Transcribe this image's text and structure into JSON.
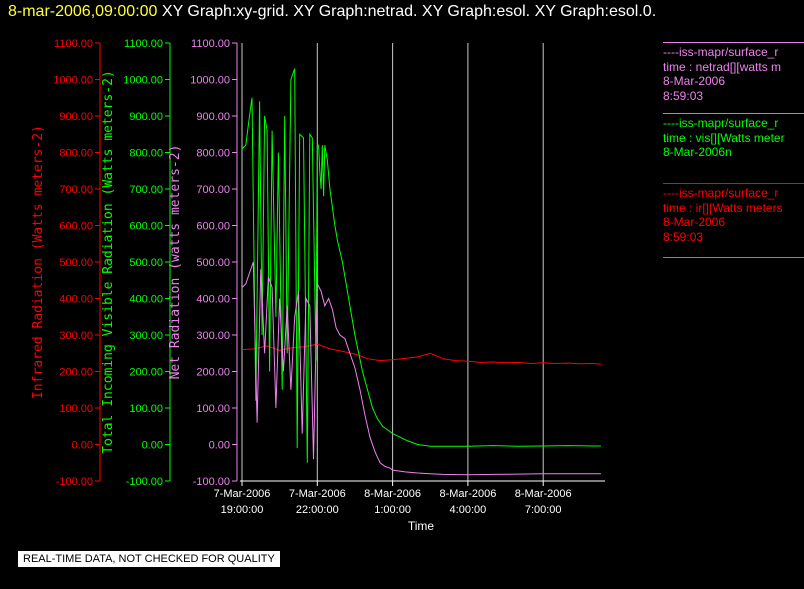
{
  "header": {
    "timestamp": "8-mar-2006,09:00:00",
    "graphs": [
      "XY Graph:xy-grid.",
      "XY Graph:netrad.",
      "XY Graph:esol.",
      "XY Graph:esol.0."
    ]
  },
  "legends": [
    {
      "color": "#ee82ee",
      "lines": [
        "----iss-mapr/surface_r",
        "time : netrad[][watts m",
        "8-Mar-2006",
        "8:59:03"
      ]
    },
    {
      "color": "#00ff00",
      "lines": [
        "----iss-mapr/surface_r",
        "time : vis[][Watts meter",
        "8-Mar-2006n"
      ]
    },
    {
      "color": "#ff0000",
      "lines": [
        "----iss-mapr/surface_r",
        "time : ir[][Watts meters",
        "8-Mar-2006",
        "8:59:03"
      ]
    }
  ],
  "disclaimer": "REAL-TIME DATA, NOT CHECKED FOR QUALITY",
  "chart_data": {
    "type": "line",
    "xlabel": "Time",
    "x_ticks": [
      {
        "hours": 0,
        "date": "7-Mar-2006",
        "time": "19:00:00"
      },
      {
        "hours": 3,
        "date": "7-Mar-2006",
        "time": "22:00:00"
      },
      {
        "hours": 6,
        "date": "8-Mar-2006",
        "time": "1:00:00"
      },
      {
        "hours": 9,
        "date": "8-Mar-2006",
        "time": "4:00:00"
      },
      {
        "hours": 12,
        "date": "8-Mar-2006",
        "time": "7:00:00"
      }
    ],
    "grid": true,
    "axes": [
      {
        "label": "Infrared Radiation (Watts meters-2)",
        "color": "#ff0000",
        "ylim": [
          -100,
          1100
        ],
        "ticks": [
          "1100.00",
          "1000.00",
          "900.00",
          "800.00",
          "700.00",
          "600.00",
          "500.00",
          "400.00",
          "300.00",
          "200.00",
          "100.00",
          "0.00",
          "-100.00"
        ]
      },
      {
        "label": "Total Incoming Visible Radiation (Watts meters-2)",
        "color": "#00ff00",
        "ylim": [
          -100,
          1100
        ],
        "ticks": [
          "1100.00",
          "1000.00",
          "900.00",
          "800.00",
          "700.00",
          "600.00",
          "500.00",
          "400.00",
          "300.00",
          "200.00",
          "100.00",
          "0.00",
          "-100.00"
        ]
      },
      {
        "label": "Net Radiation (watts meters-2)",
        "color": "#ee82ee",
        "ylim": [
          -100,
          1100
        ],
        "ticks": [
          "1100.00",
          "1000.00",
          "900.00",
          "800.00",
          "700.00",
          "600.00",
          "500.00",
          "400.00",
          "300.00",
          "200.00",
          "100.00",
          "0.00",
          "-100.00"
        ]
      }
    ],
    "series": [
      {
        "color": "#ff0000",
        "x": [
          0,
          0.5,
          1,
          1.5,
          2,
          2.5,
          3,
          3.5,
          4,
          4.5,
          5,
          5.5,
          6,
          6.5,
          7,
          7.5,
          8,
          8.5,
          9,
          9.5,
          10,
          10.5,
          11,
          11.5,
          12,
          12.5,
          13,
          13.5,
          14,
          14.3
        ],
        "y": [
          260,
          262,
          270,
          258,
          265,
          268,
          275,
          262,
          255,
          248,
          235,
          230,
          232,
          236,
          240,
          250,
          235,
          230,
          228,
          225,
          226,
          224,
          225,
          222,
          224,
          222,
          223,
          221,
          222,
          220
        ]
      },
      {
        "color": "#00ff00",
        "x": [
          0,
          0.15,
          0.3,
          0.4,
          0.55,
          0.7,
          0.8,
          0.9,
          1.0,
          1.1,
          1.2,
          1.35,
          1.45,
          1.6,
          1.7,
          1.8,
          1.95,
          2.1,
          2.2,
          2.3,
          2.45,
          2.6,
          2.7,
          2.8,
          2.95,
          3.0,
          3.05,
          3.1,
          3.15,
          3.2,
          3.25,
          3.3,
          3.4,
          3.5,
          3.6,
          3.7,
          3.8,
          4.0,
          4.2,
          4.5,
          4.8,
          5.0,
          5.2,
          5.4,
          5.6,
          5.8,
          6.0,
          6.3,
          6.6,
          7.0,
          7.5,
          8.0,
          9.0,
          10.0,
          11.0,
          12.0,
          13.0,
          14.0,
          14.3
        ],
        "y": [
          810,
          820,
          900,
          950,
          120,
          940,
          300,
          900,
          860,
          200,
          860,
          350,
          800,
          150,
          900,
          250,
          1000,
          1030,
          -10,
          850,
          840,
          -50,
          850,
          840,
          230,
          820,
          820,
          750,
          700,
          820,
          680,
          820,
          780,
          700,
          650,
          600,
          560,
          500,
          420,
          300,
          200,
          150,
          100,
          70,
          50,
          40,
          30,
          20,
          10,
          0,
          -5,
          -5,
          -5,
          -3,
          -5,
          -4,
          -3,
          -4,
          -4
        ]
      },
      {
        "color": "#ee82ee",
        "x": [
          0,
          0.15,
          0.3,
          0.45,
          0.6,
          0.75,
          0.9,
          1.05,
          1.2,
          1.35,
          1.5,
          1.65,
          1.8,
          1.95,
          2.1,
          2.25,
          2.4,
          2.55,
          2.7,
          2.85,
          3.0,
          3.15,
          3.3,
          3.45,
          3.6,
          3.75,
          3.9,
          4.1,
          4.3,
          4.5,
          4.7,
          4.9,
          5.1,
          5.3,
          5.5,
          5.7,
          5.9,
          6.0,
          6.5,
          7.0,
          7.5,
          8.0,
          9.0,
          10.0,
          11.0,
          12.0,
          13.0,
          14.0,
          14.3
        ],
        "y": [
          430,
          440,
          470,
          500,
          60,
          480,
          250,
          460,
          430,
          100,
          400,
          200,
          380,
          150,
          350,
          420,
          30,
          400,
          380,
          -40,
          440,
          420,
          380,
          400,
          370,
          320,
          300,
          290,
          250,
          210,
          150,
          80,
          20,
          -20,
          -50,
          -60,
          -65,
          -70,
          -75,
          -78,
          -80,
          -82,
          -83,
          -82,
          -81,
          -80,
          -80,
          -80,
          -80
        ]
      }
    ]
  }
}
